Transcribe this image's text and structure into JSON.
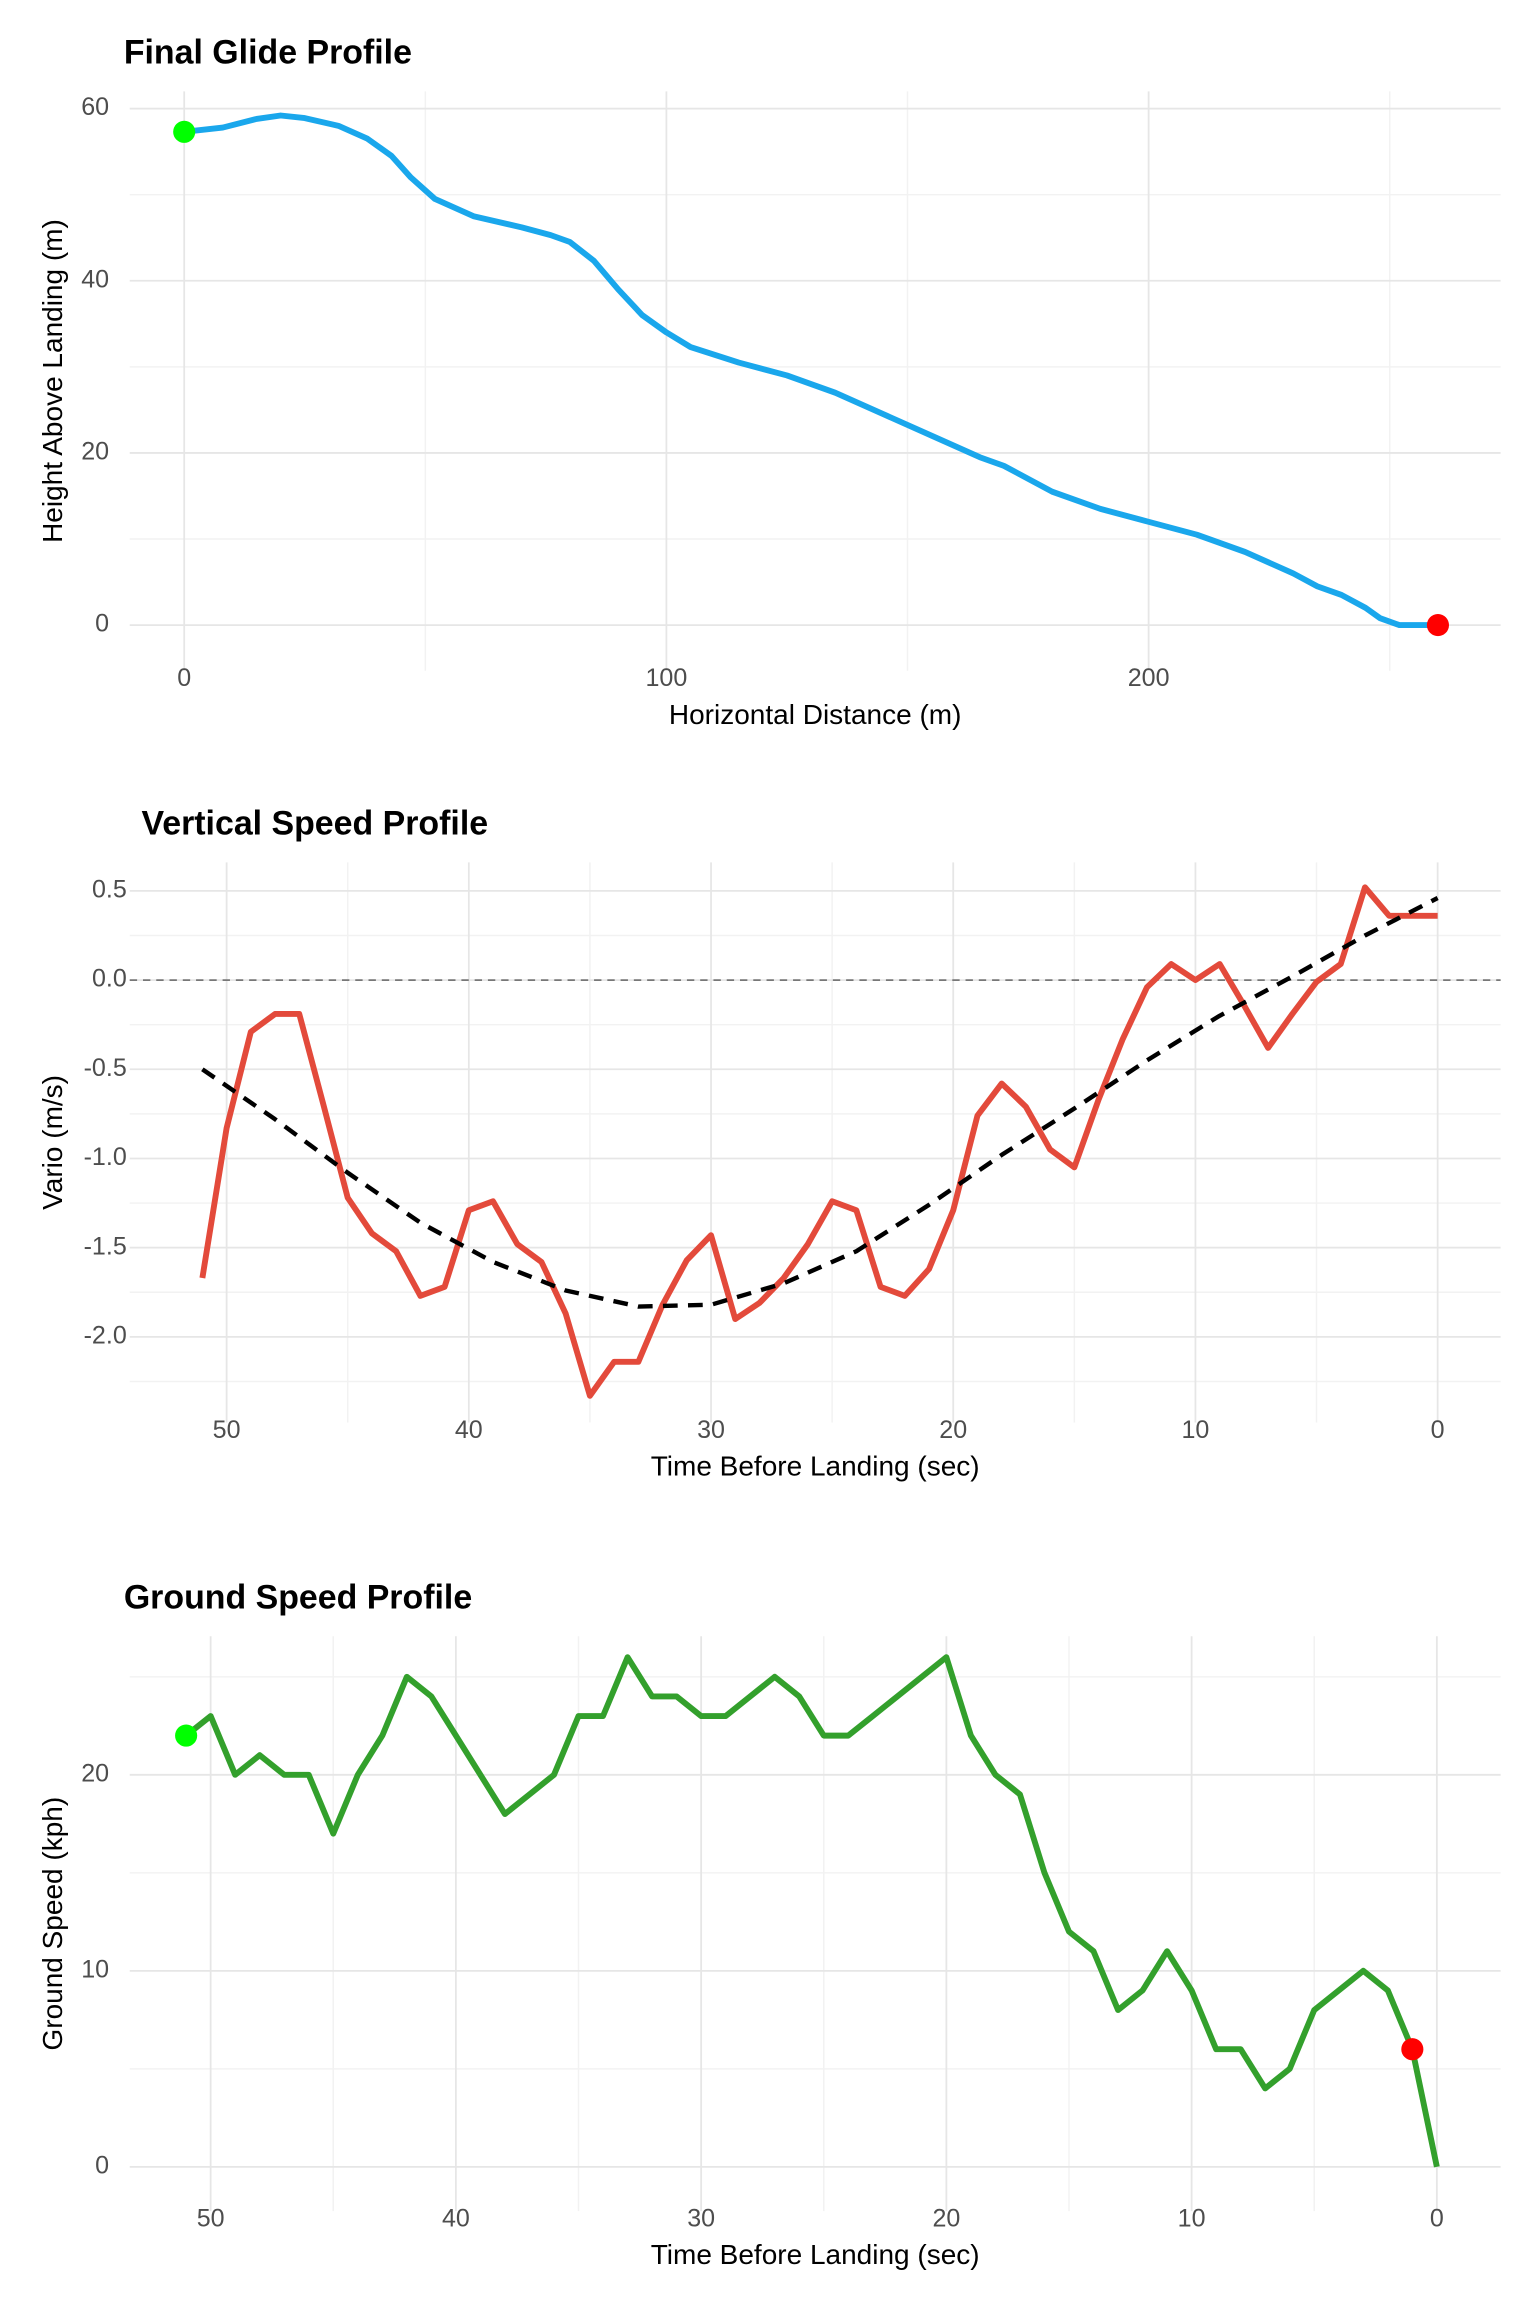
{
  "chart_data": [
    {
      "type": "line",
      "title": "Final Glide Profile",
      "x_label": "Horizontal Distance (m)",
      "y_label": "Height Above Landing (m)",
      "x": [
        0,
        8,
        15,
        20,
        25,
        32,
        38,
        43,
        47,
        52,
        60,
        70,
        76,
        80,
        85,
        90,
        95,
        100,
        105,
        115,
        125,
        135,
        145,
        155,
        165,
        170,
        180,
        190,
        200,
        210,
        220,
        230,
        235,
        240,
        245,
        248,
        252,
        256,
        260
      ],
      "series": [
        {
          "color": "#1aa7ec",
          "values": [
            57.3,
            57.8,
            58.8,
            59.2,
            58.9,
            58,
            56.5,
            54.5,
            52,
            49.5,
            47.5,
            46.2,
            45.3,
            44.5,
            42.3,
            39,
            36,
            34,
            32.3,
            30.5,
            29,
            27,
            24.5,
            22,
            19.5,
            18.5,
            15.5,
            13.5,
            12,
            10.5,
            8.5,
            6,
            4.5,
            3.5,
            2,
            0.8,
            0,
            0,
            0
          ]
        }
      ],
      "markers": [
        {
          "point": 0,
          "color": "#00ff00"
        },
        {
          "point": 38,
          "color": "#ff0000"
        }
      ],
      "xlim": [
        -11.3,
        273
      ],
      "ylim": [
        -5.3,
        62
      ],
      "xticks": [
        0,
        100,
        200
      ],
      "yticks": [
        0,
        20,
        40,
        60
      ],
      "xminor": [
        50,
        150,
        250
      ],
      "yminor": [
        10,
        30,
        50
      ],
      "grid": true
    },
    {
      "type": "line",
      "title": "Vertical Speed Profile",
      "x_label": "Time Before Landing (sec)",
      "y_label": "Vario (m/s)",
      "series": [
        {
          "color": "#e34a3b",
          "style": "solid",
          "x": [
            51,
            50,
            49,
            48,
            47,
            46,
            45,
            44,
            43,
            42,
            41,
            40,
            39,
            38,
            37,
            36,
            35,
            34,
            33,
            32,
            31,
            30,
            29,
            28,
            27,
            26,
            25,
            24,
            23,
            22,
            21,
            20,
            19,
            18,
            17,
            16,
            15,
            14,
            13,
            12,
            11,
            10,
            9,
            8,
            7,
            6,
            5,
            4,
            3,
            2,
            1,
            0
          ],
          "values": [
            -1.67,
            -0.83,
            -0.29,
            -0.19,
            -0.19,
            -0.7,
            -1.22,
            -1.42,
            -1.52,
            -1.77,
            -1.72,
            -1.29,
            -1.24,
            -1.48,
            -1.58,
            -1.87,
            -2.33,
            -2.14,
            -2.14,
            -1.82,
            -1.57,
            -1.43,
            -1.9,
            -1.81,
            -1.67,
            -1.48,
            -1.24,
            -1.29,
            -1.72,
            -1.77,
            -1.62,
            -1.29,
            -0.76,
            -0.58,
            -0.71,
            -0.95,
            -1.05,
            -0.67,
            -0.33,
            -0.04,
            0.09,
            0.0,
            0.09,
            -0.14,
            -0.38,
            -0.19,
            -0.01,
            0.09,
            0.52,
            0.36,
            0.36,
            0.36
          ]
        },
        {
          "color": "#000000",
          "style": "dashed",
          "x": [
            51,
            48,
            45,
            42,
            39,
            36,
            33,
            30,
            27,
            24,
            21,
            18,
            15,
            12,
            9,
            6,
            3,
            0
          ],
          "values": [
            -0.5,
            -0.78,
            -1.08,
            -1.36,
            -1.58,
            -1.74,
            -1.83,
            -1.82,
            -1.7,
            -1.52,
            -1.26,
            -0.98,
            -0.72,
            -0.45,
            -0.2,
            0.02,
            0.25,
            0.46
          ]
        }
      ],
      "hline": 0,
      "xlim": [
        54,
        -2.6
      ],
      "ylim": [
        -2.48,
        0.66
      ],
      "xticks": [
        50,
        40,
        30,
        20,
        10,
        0
      ],
      "yticks": [
        0.5,
        {
          "value": 0,
          "label": "0.0"
        },
        -0.5,
        {
          "value": -1,
          "label": "-1.0"
        },
        -1.5,
        {
          "value": -2,
          "label": "-2.0"
        }
      ],
      "xminor": [
        45,
        35,
        25,
        15,
        5
      ],
      "yminor": [
        0.25,
        -0.25,
        -0.75,
        -1.25,
        -1.75,
        -2.25
      ],
      "grid": true
    },
    {
      "type": "line",
      "title": "Ground Speed Profile",
      "x_label": "Time Before Landing (sec)",
      "y_label": "Ground Speed (kph)",
      "x": [
        51,
        50,
        49,
        48,
        47,
        46,
        45,
        44,
        43,
        42,
        41,
        40,
        39,
        38,
        37,
        36,
        35,
        34,
        33,
        32,
        31,
        30,
        29,
        28,
        27,
        26,
        25,
        24,
        23,
        22,
        21,
        20,
        19,
        18,
        17,
        16,
        15,
        14,
        13,
        12,
        11,
        10,
        9,
        8,
        7,
        6,
        5,
        4,
        3,
        2,
        1,
        0
      ],
      "series": [
        {
          "color": "#33a02c",
          "values": [
            22,
            23,
            20,
            21,
            20,
            20,
            17,
            20,
            22,
            25,
            24,
            22,
            20,
            18,
            19,
            20,
            23,
            23,
            26,
            24,
            24,
            23,
            23,
            24,
            25,
            24,
            22,
            22,
            23,
            24,
            25,
            26,
            22,
            20,
            19,
            15,
            12,
            11,
            8,
            9,
            11,
            9,
            6,
            6,
            4,
            5,
            8,
            9,
            10,
            9,
            6,
            0
          ]
        }
      ],
      "markers": [
        {
          "point": 0,
          "color": "#00ff00"
        },
        {
          "point": 50,
          "color": "#ff0000"
        }
      ],
      "xlim": [
        53.3,
        -2.6
      ],
      "ylim": [
        -2.26,
        27.07
      ],
      "xticks": [
        50,
        40,
        30,
        20,
        10,
        0
      ],
      "yticks": [
        0,
        10,
        20
      ],
      "xminor": [
        45,
        35,
        25,
        15,
        5
      ],
      "yminor": [
        5,
        15,
        25
      ],
      "grid": true
    }
  ]
}
